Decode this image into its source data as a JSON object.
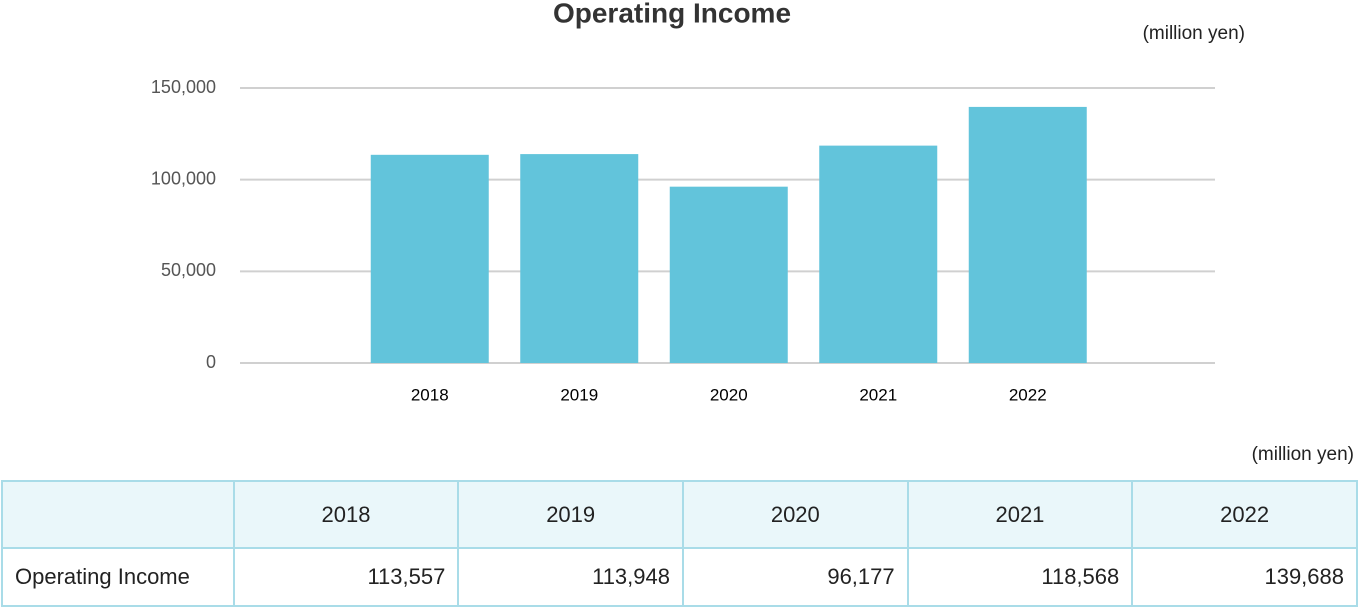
{
  "chart_data": {
    "type": "bar",
    "title": "Operating Income",
    "unit": "(million yen)",
    "categories": [
      "2018",
      "2019",
      "2020",
      "2021",
      "2022"
    ],
    "values": [
      113557,
      113948,
      96177,
      118568,
      139688
    ],
    "color": "#62c4db",
    "ylim": [
      0,
      150000
    ],
    "yticks": [
      0,
      {
        "value": 50000,
        "label": "50,000"
      },
      {
        "value": 100000,
        "label": "100,000"
      },
      {
        "value": 150000,
        "label": "150,000"
      }
    ],
    "grid": true
  },
  "table": {
    "unit": "(million yen)",
    "columns": [
      "2018",
      "2019",
      "2020",
      "2021",
      "2022"
    ],
    "rows": [
      {
        "label": "Operating Income",
        "cells": [
          "113,557",
          "113,948",
          "96,177",
          "118,568",
          "139,688"
        ]
      }
    ]
  }
}
